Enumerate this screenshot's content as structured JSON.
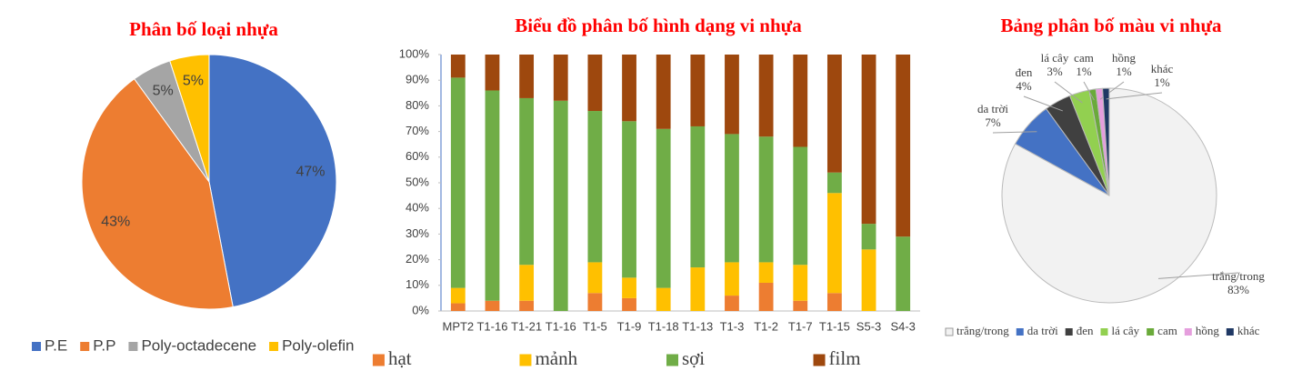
{
  "chart_data": [
    {
      "type": "pie",
      "title": "Phân bố loại nhựa",
      "categories": [
        "P.E",
        "P.P",
        "Poly-octadecene",
        "Poly-olefin"
      ],
      "values": [
        47,
        43,
        5,
        5
      ],
      "value_labels": [
        "47%",
        "43%",
        "5%",
        "5%"
      ],
      "colors": [
        "#4472c4",
        "#ed7d31",
        "#a5a5a5",
        "#ffc000"
      ]
    },
    {
      "type": "stacked-bar",
      "title": "Biểu đồ phân bố hình dạng vi nhựa",
      "categories": [
        "MPT2",
        "T1-16",
        "T1-21",
        "T1-16",
        "T1-5",
        "T1-9",
        "T1-18",
        "T1-13",
        "T1-3",
        "T1-2",
        "T1-7",
        "T1-15",
        "S5-3",
        "S4-3"
      ],
      "series": [
        {
          "name": "hạt",
          "color": "#ed7d31",
          "values": [
            3,
            4,
            4,
            0,
            7,
            5,
            0,
            0,
            6,
            11,
            4,
            7,
            0,
            0
          ]
        },
        {
          "name": "mảnh",
          "color": "#ffc000",
          "values": [
            6,
            0,
            14,
            0,
            12,
            8,
            9,
            17,
            13,
            8,
            14,
            39,
            24,
            0
          ]
        },
        {
          "name": "sợi",
          "color": "#70ad47",
          "values": [
            82,
            82,
            65,
            82,
            59,
            61,
            62,
            55,
            50,
            49,
            46,
            8,
            10,
            29
          ]
        },
        {
          "name": "film",
          "color": "#9e480e",
          "values": [
            9,
            14,
            17,
            18,
            22,
            26,
            29,
            28,
            31,
            32,
            36,
            46,
            66,
            71
          ]
        }
      ],
      "ylim": [
        0,
        100
      ],
      "yticks": [
        {
          "value": 0,
          "label": "0%"
        },
        {
          "value": 10,
          "label": "10%"
        },
        {
          "value": 20,
          "label": "20%"
        },
        {
          "value": 30,
          "label": "30%"
        },
        {
          "value": 40,
          "label": "40%"
        },
        {
          "value": 50,
          "label": "50%"
        },
        {
          "value": 60,
          "label": "60%"
        },
        {
          "value": 70,
          "label": "70%"
        },
        {
          "value": 80,
          "label": "80%"
        },
        {
          "value": 90,
          "label": "90%"
        },
        {
          "value": 100,
          "label": "100%"
        }
      ],
      "grid": false
    },
    {
      "type": "pie",
      "title": "Bảng phân bố màu vi nhựa",
      "categories": [
        "trắng/trong",
        "da trời",
        "đen",
        "lá cây",
        "cam",
        "hồng",
        "khác"
      ],
      "values": [
        83,
        7,
        4,
        3,
        1,
        1,
        1
      ],
      "value_labels": [
        "83%",
        "7%",
        "4%",
        "3%",
        "1%",
        "1%",
        "1%"
      ],
      "colors": [
        "#f2f2f2",
        "#4472c4",
        "#404040",
        "#92d050",
        "#6aaa3a",
        "#e59edd",
        "#1f3864"
      ]
    }
  ]
}
